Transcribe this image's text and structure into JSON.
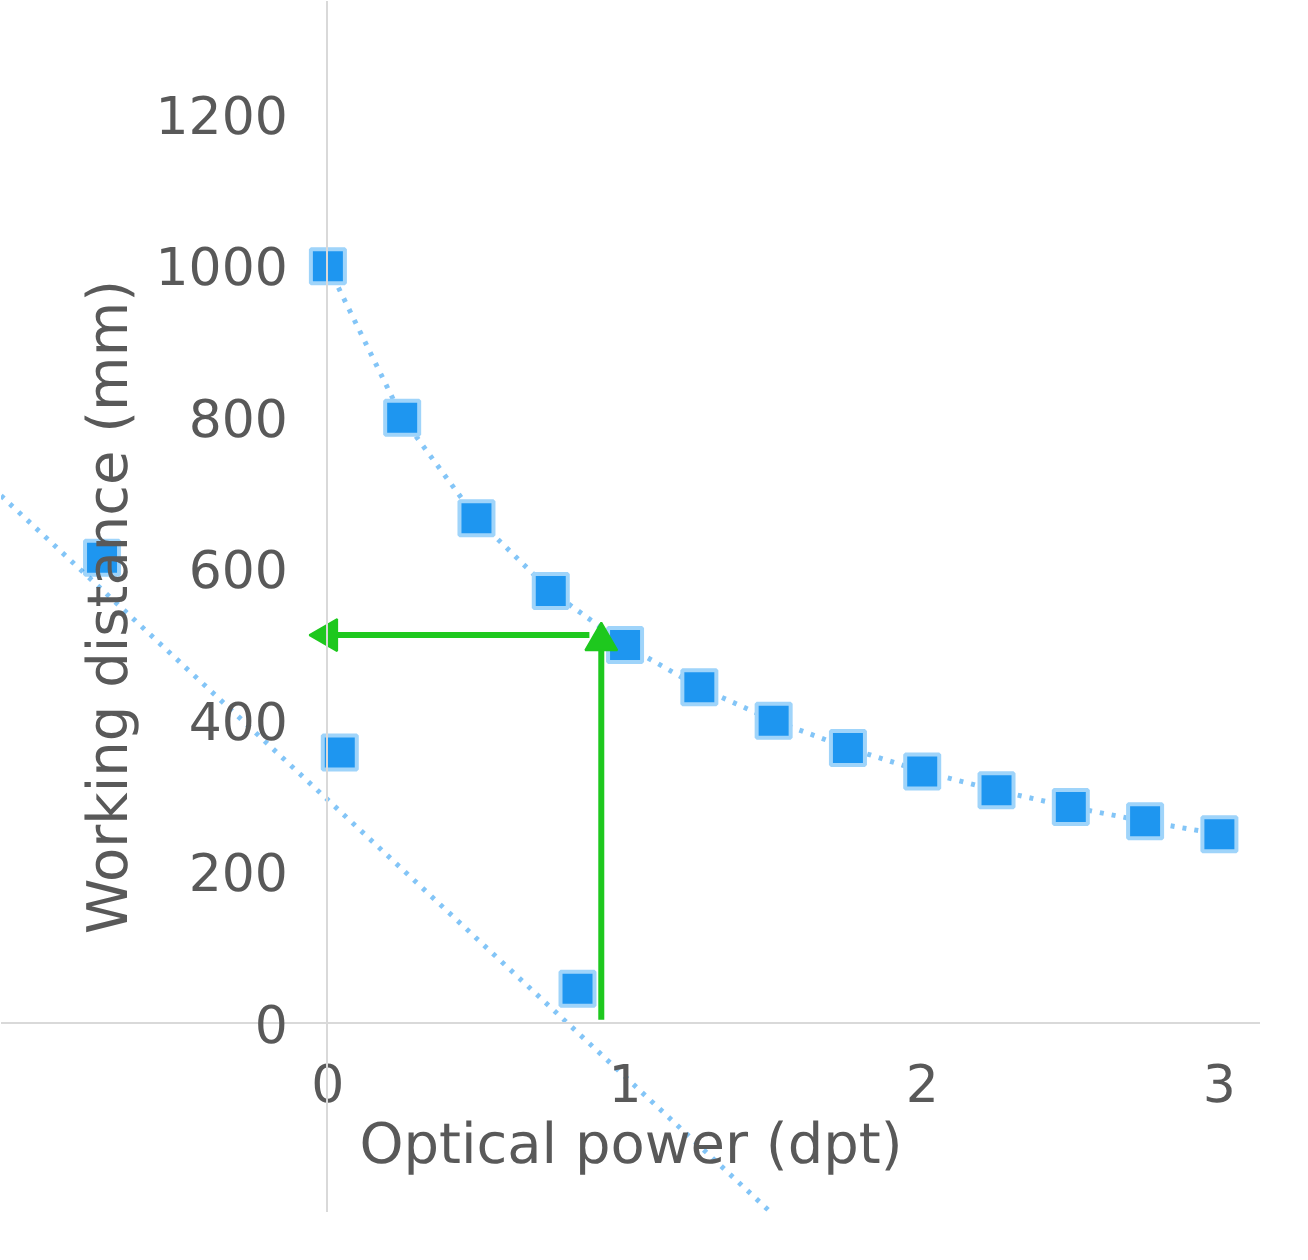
{
  "chart_data": {
    "type": "scatter",
    "xlabel": "Optical power (dpt)",
    "ylabel": "Working distance (mm)",
    "xlim": [
      -1.1,
      3.14
    ],
    "ylim": [
      -250,
      1350
    ],
    "xticks": [
      0,
      1,
      2,
      3
    ],
    "yticks": [
      0,
      200,
      400,
      600,
      800,
      1000,
      1200
    ],
    "grid": false,
    "series": [
      {
        "type": "line",
        "line_style": "dotted",
        "marker": "square",
        "color": "#1e96f0",
        "x": [
          0,
          0.25,
          0.5,
          0.75,
          1,
          1.25,
          1.5,
          1.75,
          2,
          2.25,
          2.5,
          2.75,
          3
        ],
        "values": [
          1000,
          800,
          667,
          571,
          500,
          444,
          400,
          364,
          333,
          308,
          286,
          267,
          250
        ]
      },
      {
        "marker": "square",
        "color": "#1e96f0",
        "x": [
          -0.76,
          0.04,
          0.84
        ],
        "values": [
          615,
          358,
          46
        ]
      },
      {
        "type": "line",
        "line_style": "dotted",
        "marker": "none",
        "color": "#1e96f0",
        "x": [
          -1.1,
          1.49
        ],
        "values": [
          697,
          -249
        ]
      },
      {
        "type": "line",
        "line_style": "solid",
        "marker": "triangle",
        "color": "#1ec81e",
        "x": [
          0.92,
          0.92
        ],
        "values": [
          5,
          505
        ]
      },
      {
        "type": "line",
        "line_style": "solid",
        "marker": "triangle",
        "color": "#1ec81e",
        "x": [
          0.88,
          0.0
        ],
        "values": [
          513,
          513
        ]
      }
    ]
  }
}
